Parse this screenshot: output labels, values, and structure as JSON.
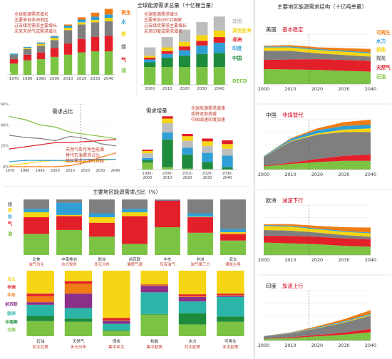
{
  "colors": {
    "oil": "#7cc243",
    "gas": "#e3202a",
    "coal": "#7f7f7f",
    "nuclear": "#f5d514",
    "hydro": "#2f9fd6",
    "renew": "#f07c14",
    "oecd": "#7cc243",
    "china": "#1e8b3c",
    "india": "#2f9fd6",
    "africa": "#e3202a",
    "other": "#f5d514",
    "other2": "#bdbdbd"
  },
  "chart_data": [
    {
      "id": "total",
      "type": "bar",
      "title": "全球能源需求总量（十亿桶当量）",
      "notes": [
        "全球能源需求增长",
        "主要来自非洲地区",
        "过去煤炭需求主要增长",
        "未来天然气成需求增长"
      ],
      "categories": [
        "1970",
        "1980",
        "1990",
        "2000",
        "2010",
        "2020",
        "2030",
        "2040"
      ],
      "series": [
        {
          "name": "油",
          "color": "oil",
          "values": [
            5,
            6.5,
            7,
            8,
            9,
            10,
            10.5,
            10.5
          ]
        },
        {
          "name": "气",
          "color": "gas",
          "values": [
            2,
            2.5,
            3,
            4,
            5,
            6,
            6.5,
            7
          ]
        },
        {
          "name": "煤",
          "color": "coal",
          "values": [
            2,
            2.5,
            3,
            3.5,
            6,
            6.5,
            6.5,
            6.5
          ]
        },
        {
          "name": "核",
          "color": "nuclear",
          "values": [
            0,
            0.5,
            0.8,
            1,
            1,
            1,
            1,
            1.5
          ]
        },
        {
          "name": "水",
          "color": "hydro",
          "values": [
            0.5,
            0.5,
            0.6,
            0.7,
            1,
            1.2,
            1.5,
            1.5
          ]
        },
        {
          "name": "再生",
          "color": "renew",
          "values": [
            0,
            0,
            0.1,
            0.2,
            0.5,
            1,
            1.8,
            2.5
          ]
        }
      ],
      "legend": [
        "再生",
        "水",
        "核",
        "煤",
        "气",
        "油"
      ],
      "xlabel": "",
      "ylabel": ""
    },
    {
      "id": "regional_total",
      "type": "bar",
      "notes": [
        "全球能源需求增长",
        "主要来自OECD国家",
        "过去煤炭需求主要增长",
        "未来印度成需求增长"
      ],
      "categories": [
        "2000",
        "2010",
        "2020",
        "2030",
        "2040"
      ],
      "series": [
        {
          "name": "OECD",
          "color": "oecd",
          "values": [
            9.5,
            9.5,
            9.5,
            9.5,
            9.5
          ]
        },
        {
          "name": "中国",
          "color": "china",
          "values": [
            2.5,
            5,
            6,
            7,
            7.5
          ]
        },
        {
          "name": "印度",
          "color": "india",
          "values": [
            1.5,
            2,
            3,
            4.5,
            5.5
          ]
        },
        {
          "name": "非洲",
          "color": "africa",
          "values": [
            1,
            1.5,
            2,
            2.5,
            3
          ]
        },
        {
          "name": "其他亚洲",
          "color": "other",
          "values": [
            1,
            2,
            2.5,
            3,
            3.5
          ]
        },
        {
          "name": "其他",
          "color": "other2",
          "values": [
            4.5,
            5.5,
            6.5,
            7,
            7.5
          ]
        }
      ],
      "legend": [
        "其他",
        "其他亚洲",
        "非洲",
        "印度",
        "中国",
        "OECD"
      ],
      "xlabel": "",
      "ylabel": ""
    },
    {
      "id": "share",
      "type": "line",
      "title": "需求占比",
      "notes": [
        "天然气及可再生能源",
        "替代石油需求占比",
        "煤炭需求占比时持稳"
      ],
      "x": [
        1970,
        1980,
        1990,
        2000,
        2010,
        2020,
        2030,
        2040
      ],
      "series": [
        {
          "name": "油",
          "color": "oil",
          "values": [
            48,
            45,
            40,
            38,
            33,
            31,
            29,
            27
          ]
        },
        {
          "name": "煤",
          "color": "coal",
          "values": [
            30,
            28,
            27,
            25,
            29,
            27,
            22,
            20
          ]
        },
        {
          "name": "气",
          "color": "gas",
          "values": [
            17,
            19,
            21,
            23,
            23,
            24,
            25,
            26
          ]
        },
        {
          "name": "核",
          "color": "nuclear",
          "values": [
            1,
            3,
            5,
            6,
            5,
            5,
            6,
            7
          ]
        },
        {
          "name": "水",
          "color": "hydro",
          "values": [
            5,
            6,
            6,
            6,
            6,
            7,
            7,
            7
          ]
        },
        {
          "name": "再生",
          "color": "renew",
          "values": [
            0,
            0,
            0,
            0,
            1,
            4,
            9,
            13
          ]
        }
      ],
      "yticks": [
        "60%",
        "40%",
        "20%",
        "0%"
      ],
      "ylim": [
        0,
        60
      ],
      "xticks": [
        "1970",
        "1980",
        "1990",
        "2000",
        "2010",
        "2020",
        "2030",
        "2040"
      ],
      "xlabel": "",
      "ylabel": ""
    },
    {
      "id": "growth",
      "type": "bar",
      "title": "需求增量",
      "notes": [
        "全球能源需求增速",
        "或将逐渐放缓",
        "中国减速印度加速"
      ],
      "categories": [
        "1990-2000",
        "2000-2010",
        "2010-2020",
        "2020-2030",
        "2030-2040"
      ],
      "series": [
        {
          "name": "OECD",
          "color": "oecd",
          "values": [
            1.5,
            0.5,
            0.2,
            0.1,
            0
          ]
        },
        {
          "name": "中国",
          "color": "china",
          "values": [
            0.5,
            6,
            3,
            1.5,
            0.5
          ]
        },
        {
          "name": "印度",
          "color": "india",
          "values": [
            0.5,
            1.5,
            1.5,
            2,
            2.5
          ]
        },
        {
          "name": "其他",
          "color": "other2",
          "values": [
            1,
            2,
            1.5,
            1.5,
            1.5
          ]
        },
        {
          "name": "其他亚洲",
          "color": "other",
          "values": [
            0.5,
            1,
            1,
            1,
            1
          ]
        },
        {
          "name": "非洲",
          "color": "africa",
          "values": [
            0.3,
            0.5,
            0.5,
            0.6,
            0.8
          ]
        }
      ],
      "xlabel": "",
      "ylabel": ""
    },
    {
      "id": "regional_share_fuel",
      "type": "bar",
      "title": "主要地区能源需求占比（%）",
      "categories": [
        "北美",
        "中南美洲",
        "欧洲",
        "前苏联",
        "中东",
        "非洲",
        "亚太"
      ],
      "captions": [
        "油气为主",
        "水力较多",
        "多元分布",
        "偏倚气源",
        "仅有油气",
        "油气煤三分",
        "煤炭主导"
      ],
      "series": [
        {
          "name": "油",
          "color": "oil",
          "values": [
            38,
            45,
            33,
            20,
            50,
            40,
            26
          ]
        },
        {
          "name": "气",
          "color": "gas",
          "values": [
            30,
            25,
            25,
            50,
            48,
            28,
            12
          ]
        },
        {
          "name": "核",
          "color": "nuclear",
          "values": [
            9,
            2,
            10,
            7,
            0,
            1,
            3
          ]
        },
        {
          "name": "水",
          "color": "hydro",
          "values": [
            6,
            22,
            7,
            6,
            1,
            6,
            6
          ]
        },
        {
          "name": "煤",
          "color": "coal",
          "values": [
            17,
            6,
            25,
            17,
            1,
            25,
            53
          ]
        }
      ],
      "legend": [
        "煤",
        "核",
        "水",
        "气",
        "油"
      ],
      "xlabel": "",
      "ylabel": ""
    },
    {
      "id": "regional_share_source",
      "type": "bar",
      "categories": [
        "石油",
        "天然气",
        "煤炭",
        "核能",
        "水力",
        "可再生"
      ],
      "captions": [
        "亚太北美",
        "多元分布",
        "集中亚太",
        "集中欧美",
        "亚太欧美",
        "亚太欧美"
      ],
      "series": [
        {
          "name": "北美",
          "color": "oil",
          "values": [
            23,
            22,
            8,
            33,
            18,
            22
          ]
        },
        {
          "name": "中南美",
          "color": "china",
          "values": [
            8,
            5,
            1,
            1,
            17,
            8
          ]
        },
        {
          "name": "欧洲",
          "color": "#2bb5a8",
          "values": [
            17,
            16,
            10,
            33,
            18,
            30
          ]
        },
        {
          "name": "前苏联",
          "color": "#8b2f8b",
          "values": [
            4,
            22,
            5,
            10,
            7,
            2
          ]
        },
        {
          "name": "中东",
          "color": "renew",
          "values": [
            9,
            15,
            1,
            1,
            1,
            1
          ]
        },
        {
          "name": "非洲",
          "color": "gas",
          "values": [
            4,
            4,
            3,
            1,
            3,
            2
          ]
        },
        {
          "name": "亚太",
          "color": "nuclear",
          "values": [
            35,
            16,
            72,
            21,
            36,
            35
          ]
        }
      ],
      "legend": [
        "亚太",
        "非洲",
        "中东",
        "前苏联",
        "欧洲",
        "中南美",
        "北美"
      ],
      "xlabel": "",
      "ylabel": ""
    },
    {
      "id": "area_panels",
      "type": "area",
      "title": "主要地区能源需求结构（十亿吨单量）",
      "x": [
        2000,
        2010,
        2020,
        2030,
        2040
      ],
      "xticks": [
        "2000",
        "2010",
        "2020",
        "2030",
        "2040"
      ],
      "legend": [
        "可再生",
        "水力",
        "核能",
        "煤炭",
        "天然气",
        "石油"
      ],
      "legend_colors": [
        "renew",
        "hydro",
        "nuclear",
        "coal",
        "gas",
        "oil"
      ],
      "panels": [
        {
          "name": "美国",
          "subtitle": "基本稳定",
          "ymax": 3,
          "series": {
            "oil": [
              0.9,
              0.88,
              0.85,
              0.8,
              0.75
            ],
            "gas": [
              0.55,
              0.6,
              0.65,
              0.65,
              0.65
            ],
            "coal": [
              0.55,
              0.52,
              0.35,
              0.3,
              0.25
            ],
            "nuclear": [
              0.2,
              0.2,
              0.2,
              0.2,
              0.2
            ],
            "hydro": [
              0.06,
              0.06,
              0.06,
              0.06,
              0.06
            ],
            "renew": [
              0.05,
              0.08,
              0.1,
              0.15,
              0.2
            ]
          }
        },
        {
          "name": "中国",
          "subtitle": "非煤替代",
          "ymax": 4,
          "series": {
            "oil": [
              0.25,
              0.45,
              0.6,
              0.7,
              0.7
            ],
            "gas": [
              0.05,
              0.1,
              0.25,
              0.4,
              0.5
            ],
            "coal": [
              0.7,
              1.7,
              1.95,
              1.9,
              1.8
            ],
            "nuclear": [
              0.02,
              0.05,
              0.1,
              0.2,
              0.3
            ],
            "hydro": [
              0.05,
              0.15,
              0.25,
              0.3,
              0.3
            ],
            "renew": [
              0,
              0.05,
              0.15,
              0.3,
              0.4
            ]
          }
        },
        {
          "name": "欧洲",
          "subtitle": "减速下行",
          "ymax": 3,
          "series": {
            "oil": [
              0.75,
              0.7,
              0.65,
              0.55,
              0.5
            ],
            "gas": [
              0.4,
              0.45,
              0.45,
              0.45,
              0.45
            ],
            "coal": [
              0.35,
              0.32,
              0.25,
              0.2,
              0.15
            ],
            "nuclear": [
              0.25,
              0.24,
              0.2,
              0.2,
              0.2
            ],
            "hydro": [
              0.05,
              0.05,
              0.05,
              0.05,
              0.05
            ],
            "renew": [
              0.05,
              0.1,
              0.15,
              0.22,
              0.3
            ]
          }
        },
        {
          "name": "印度",
          "subtitle": "加速上行",
          "ymax": 3,
          "series": {
            "oil": [
              0.1,
              0.15,
              0.25,
              0.35,
              0.5
            ],
            "gas": [
              0.02,
              0.05,
              0.08,
              0.12,
              0.2
            ],
            "coal": [
              0.12,
              0.22,
              0.4,
              0.6,
              0.8
            ],
            "nuclear": [
              0,
              0.01,
              0.02,
              0.04,
              0.06
            ],
            "hydro": [
              0.02,
              0.03,
              0.04,
              0.05,
              0.06
            ],
            "renew": [
              0.01,
              0.02,
              0.06,
              0.12,
              0.2
            ]
          }
        }
      ]
    }
  ]
}
